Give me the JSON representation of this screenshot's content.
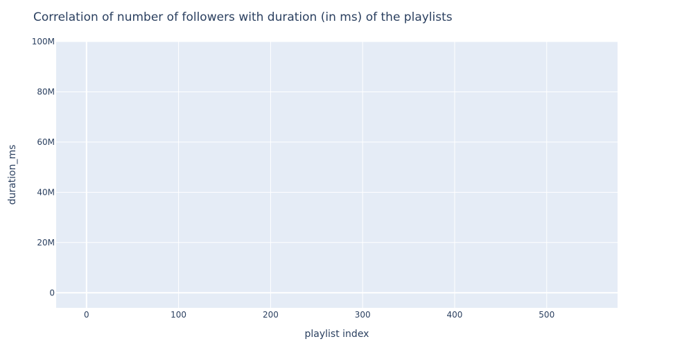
{
  "chart_data": {
    "type": "scatter",
    "title": "Correlation of number of followers with duration (in ms) of the playlists",
    "xlabel": "playlist index",
    "ylabel": "duration_ms",
    "x": [],
    "y": [],
    "xlim": [
      -33,
      577
    ],
    "ylim": [
      -6000000,
      100000000
    ],
    "xticks": [
      0,
      100,
      200,
      300,
      400,
      500
    ],
    "yticks": [
      0,
      20000000,
      40000000,
      60000000,
      80000000,
      100000000
    ],
    "xtick_labels": [
      "0",
      "100",
      "200",
      "300",
      "400",
      "500"
    ],
    "ytick_labels": [
      "0",
      "20M",
      "40M",
      "60M",
      "80M",
      "100M"
    ],
    "grid": true,
    "legend": "none",
    "colors": {
      "plot_background": "#e5ecf6",
      "grid": "#ffffff",
      "text": "#2a3f5f"
    }
  }
}
